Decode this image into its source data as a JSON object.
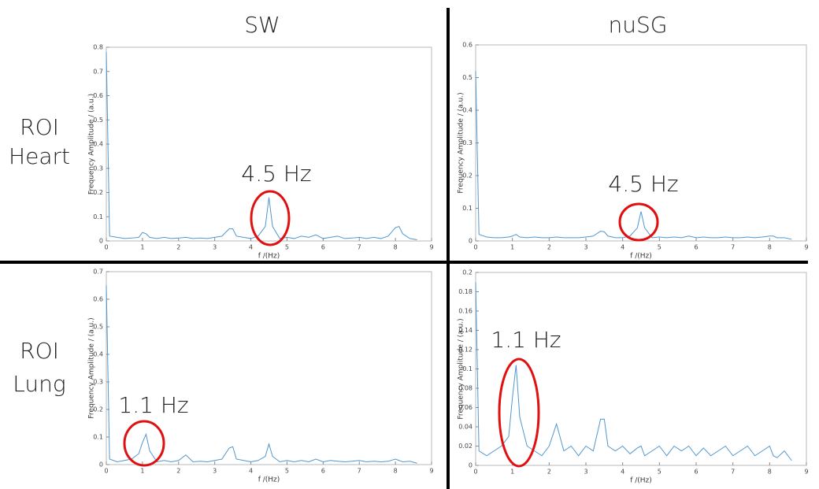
{
  "columns": [
    "SW",
    "nuSG"
  ],
  "rows": [
    [
      "ROI",
      "Heart"
    ],
    [
      "ROI",
      "Lung"
    ]
  ],
  "chart_data": [
    {
      "type": "line",
      "xlabel": "f /(Hz)",
      "ylabel": "Frequency Amplitude / (a.u.)",
      "annotation": "4.5 Hz",
      "x": [
        0,
        0.09,
        0.3,
        0.5,
        0.7,
        0.9,
        1.0,
        1.1,
        1.2,
        1.4,
        1.6,
        1.8,
        2.0,
        2.2,
        2.4,
        2.6,
        2.8,
        3.0,
        3.2,
        3.4,
        3.5,
        3.6,
        3.8,
        4.0,
        4.2,
        4.4,
        4.5,
        4.6,
        4.8,
        5.0,
        5.2,
        5.4,
        5.6,
        5.8,
        6.0,
        6.2,
        6.4,
        6.6,
        6.8,
        7.0,
        7.2,
        7.4,
        7.6,
        7.8,
        8.0,
        8.1,
        8.2,
        8.4,
        8.6
      ],
      "series": [
        {
          "color": "#4f97d0",
          "values": [
            0.78,
            0.02,
            0.015,
            0.01,
            0.012,
            0.015,
            0.035,
            0.03,
            0.015,
            0.01,
            0.015,
            0.01,
            0.012,
            0.015,
            0.01,
            0.012,
            0.01,
            0.015,
            0.02,
            0.05,
            0.05,
            0.02,
            0.015,
            0.01,
            0.02,
            0.06,
            0.18,
            0.06,
            0.01,
            0.015,
            0.01,
            0.02,
            0.015,
            0.025,
            0.01,
            0.015,
            0.02,
            0.01,
            0.012,
            0.015,
            0.01,
            0.015,
            0.01,
            0.02,
            0.055,
            0.06,
            0.03,
            0.01,
            0.005
          ]
        }
      ],
      "xlim": [
        0,
        9
      ],
      "xticks": [
        0,
        1,
        2,
        3,
        4,
        5,
        6,
        7,
        8,
        9
      ],
      "ylim": [
        0,
        0.8
      ],
      "yticks": [
        0,
        0.1,
        0.2,
        0.3,
        0.4,
        0.5,
        0.6,
        0.7,
        0.8
      ]
    },
    {
      "type": "line",
      "xlabel": "f /(Hz)",
      "ylabel": "Frequency Amplitude / (a.u.)",
      "annotation": "4.5 Hz",
      "x": [
        0,
        0.09,
        0.3,
        0.5,
        0.7,
        0.9,
        1.0,
        1.1,
        1.2,
        1.4,
        1.6,
        1.8,
        2.0,
        2.2,
        2.4,
        2.6,
        2.8,
        3.0,
        3.2,
        3.4,
        3.5,
        3.6,
        3.8,
        4.0,
        4.2,
        4.4,
        4.5,
        4.6,
        4.8,
        5.0,
        5.2,
        5.4,
        5.6,
        5.8,
        6.0,
        6.2,
        6.4,
        6.6,
        6.8,
        7.0,
        7.2,
        7.4,
        7.6,
        7.8,
        8.0,
        8.1,
        8.2,
        8.4,
        8.6
      ],
      "series": [
        {
          "color": "#4f97d0",
          "values": [
            0.52,
            0.02,
            0.012,
            0.01,
            0.01,
            0.012,
            0.015,
            0.02,
            0.012,
            0.01,
            0.012,
            0.01,
            0.01,
            0.012,
            0.01,
            0.01,
            0.01,
            0.012,
            0.015,
            0.03,
            0.028,
            0.015,
            0.01,
            0.01,
            0.015,
            0.04,
            0.09,
            0.04,
            0.01,
            0.012,
            0.01,
            0.012,
            0.01,
            0.015,
            0.01,
            0.012,
            0.01,
            0.01,
            0.012,
            0.01,
            0.01,
            0.012,
            0.01,
            0.012,
            0.015,
            0.015,
            0.01,
            0.01,
            0.005
          ]
        }
      ],
      "xlim": [
        0,
        9
      ],
      "xticks": [
        0,
        1,
        2,
        3,
        4,
        5,
        6,
        7,
        8,
        9
      ],
      "ylim": [
        0,
        0.6
      ],
      "yticks": [
        0,
        0.1,
        0.2,
        0.3,
        0.4,
        0.5,
        0.6
      ]
    },
    {
      "type": "line",
      "xlabel": "f /(Hz)",
      "ylabel": "Frequency Amplitude / (a.u.)",
      "annotation": "1.1 Hz",
      "x": [
        0,
        0.09,
        0.3,
        0.5,
        0.7,
        0.9,
        1.0,
        1.1,
        1.2,
        1.4,
        1.6,
        1.8,
        2.0,
        2.2,
        2.4,
        2.6,
        2.8,
        3.0,
        3.2,
        3.4,
        3.5,
        3.6,
        3.8,
        4.0,
        4.2,
        4.4,
        4.5,
        4.6,
        4.8,
        5.0,
        5.2,
        5.4,
        5.6,
        5.8,
        6.0,
        6.2,
        6.4,
        6.6,
        6.8,
        7.0,
        7.2,
        7.4,
        7.6,
        7.8,
        8.0,
        8.1,
        8.2,
        8.4,
        8.6
      ],
      "series": [
        {
          "color": "#4f97d0",
          "values": [
            0.65,
            0.02,
            0.01,
            0.015,
            0.02,
            0.04,
            0.08,
            0.11,
            0.05,
            0.01,
            0.015,
            0.01,
            0.015,
            0.035,
            0.01,
            0.012,
            0.01,
            0.015,
            0.02,
            0.06,
            0.065,
            0.02,
            0.015,
            0.01,
            0.015,
            0.03,
            0.075,
            0.03,
            0.01,
            0.015,
            0.01,
            0.015,
            0.01,
            0.02,
            0.01,
            0.015,
            0.012,
            0.01,
            0.012,
            0.015,
            0.01,
            0.012,
            0.01,
            0.012,
            0.02,
            0.015,
            0.01,
            0.012,
            0.005
          ]
        }
      ],
      "xlim": [
        0,
        9
      ],
      "xticks": [
        0,
        1,
        2,
        3,
        4,
        5,
        6,
        7,
        8,
        9
      ],
      "ylim": [
        0,
        0.7
      ],
      "yticks": [
        0,
        0.1,
        0.2,
        0.3,
        0.4,
        0.5,
        0.6,
        0.7
      ]
    },
    {
      "type": "line",
      "xlabel": "f /(Hz)",
      "ylabel": "Frequency Amplitude / (a.u.)",
      "annotation": "1.1 Hz",
      "x": [
        0,
        0.09,
        0.3,
        0.5,
        0.7,
        0.9,
        1.0,
        1.1,
        1.2,
        1.4,
        1.6,
        1.8,
        2.0,
        2.2,
        2.4,
        2.6,
        2.8,
        3.0,
        3.2,
        3.4,
        3.5,
        3.6,
        3.8,
        4.0,
        4.2,
        4.4,
        4.5,
        4.6,
        4.8,
        5.0,
        5.2,
        5.4,
        5.6,
        5.8,
        6.0,
        6.2,
        6.4,
        6.6,
        6.8,
        7.0,
        7.2,
        7.4,
        7.6,
        7.8,
        8.0,
        8.1,
        8.2,
        8.4,
        8.6
      ],
      "series": [
        {
          "color": "#4f97d0",
          "values": [
            0.19,
            0.015,
            0.01,
            0.015,
            0.02,
            0.03,
            0.07,
            0.104,
            0.05,
            0.02,
            0.015,
            0.01,
            0.02,
            0.043,
            0.015,
            0.02,
            0.01,
            0.02,
            0.015,
            0.048,
            0.048,
            0.02,
            0.015,
            0.02,
            0.012,
            0.018,
            0.02,
            0.01,
            0.015,
            0.02,
            0.01,
            0.02,
            0.015,
            0.02,
            0.01,
            0.018,
            0.01,
            0.015,
            0.02,
            0.01,
            0.015,
            0.02,
            0.01,
            0.015,
            0.02,
            0.01,
            0.008,
            0.015,
            0.005
          ]
        }
      ],
      "xlim": [
        0,
        9
      ],
      "xticks": [
        0,
        1,
        2,
        3,
        4,
        5,
        6,
        7,
        8,
        9
      ],
      "ylim": [
        0,
        0.2
      ],
      "yticks": [
        0,
        0.02,
        0.04,
        0.06,
        0.08,
        0.1,
        0.12,
        0.14,
        0.16,
        0.18,
        0.2
      ]
    }
  ]
}
